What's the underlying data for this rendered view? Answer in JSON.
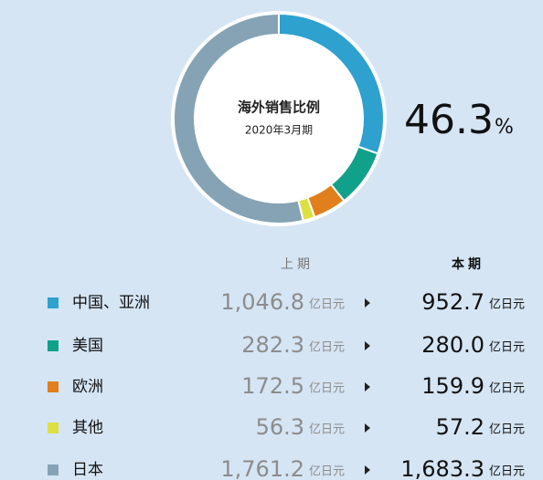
{
  "chart_data": {
    "type": "donut",
    "title": "海外销售比例",
    "subtitle": "2020年3月期",
    "ratio": 46.3,
    "ratio_unit": "%",
    "unit": "亿日元",
    "categories": [
      "中国、亚洲",
      "美国",
      "欧洲",
      "其他",
      "日本"
    ],
    "colors": [
      "#2ea1cf",
      "#11a08a",
      "#e07f1c",
      "#dde041",
      "#85a3b4"
    ],
    "series": [
      {
        "name": "上期",
        "values": [
          1046.8,
          282.3,
          172.5,
          56.3,
          1761.2
        ],
        "value_labels": [
          "1,046.8",
          "282.3",
          "172.5",
          "56.3",
          "1,761.2"
        ]
      },
      {
        "name": "本期",
        "values": [
          952.7,
          280.0,
          159.9,
          57.2,
          1683.3
        ],
        "value_labels": [
          "952.7",
          "280.0",
          "159.9",
          "57.2",
          "1,683.3"
        ]
      }
    ]
  }
}
